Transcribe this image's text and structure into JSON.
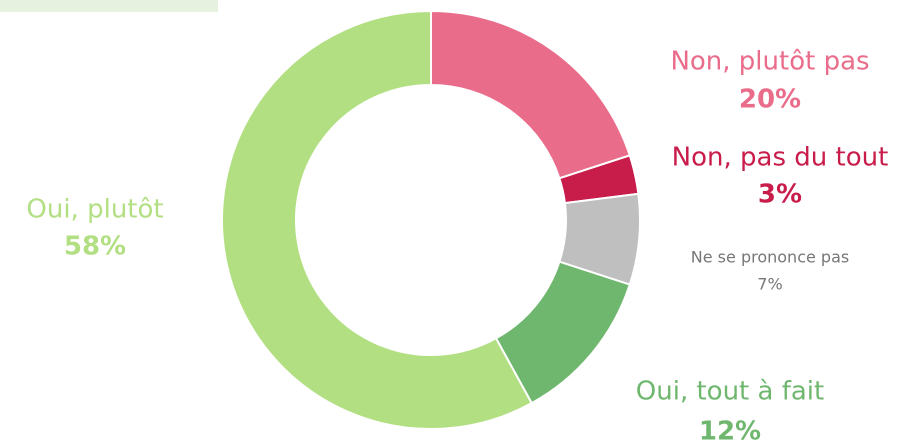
{
  "chart_data": {
    "type": "donut",
    "categories": [
      "Non, plutôt pas",
      "Non, pas du tout",
      "Ne se prononce pas",
      "Oui, tout à fait",
      "Oui, plutôt"
    ],
    "values": [
      20,
      3,
      7,
      12,
      58
    ],
    "value_labels": [
      "20%",
      "3%",
      "7%",
      "12%",
      "58%"
    ],
    "colors": [
      "#ea6c8b",
      "#c81c4b",
      "#bfbfbf",
      "#6fb76e",
      "#b3df83"
    ]
  }
}
